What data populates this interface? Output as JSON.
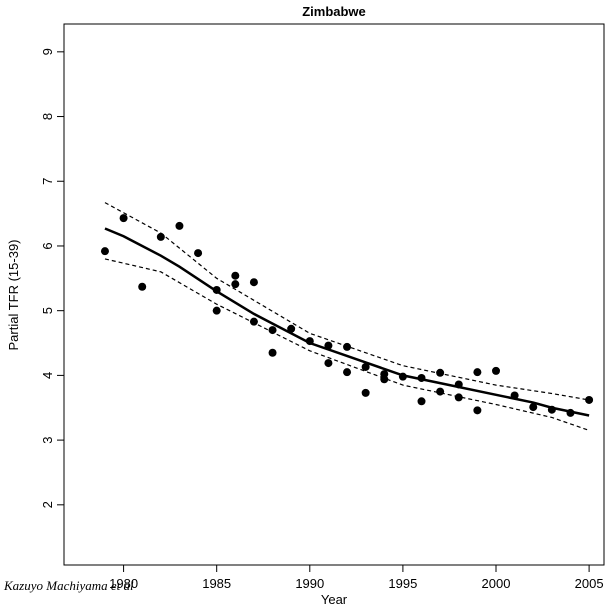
{
  "chart_data": {
    "type": "scatter",
    "title": "Zimbabwe",
    "x_label": "Year",
    "y_label": "Partial TFR (15-39)",
    "annotation": "Kazuyo Machiyama et al",
    "xlim": [
      1976.8,
      2005.8
    ],
    "ylim": [
      1.07,
      9.43
    ],
    "xticks": [
      1980,
      1985,
      1990,
      1995,
      2000,
      2005
    ],
    "yticks": [
      2,
      3,
      4,
      5,
      6,
      7,
      8,
      9
    ],
    "series": [
      {
        "name": "observed",
        "kind": "points",
        "color": "#000000",
        "x": [
          1979,
          1980,
          1981,
          1982,
          1983,
          1984,
          1985,
          1985,
          1986,
          1986,
          1987,
          1987,
          1988,
          1988,
          1989,
          1990,
          1991,
          1991,
          1992,
          1992,
          1993,
          1993,
          1994,
          1994,
          1995,
          1996,
          1996,
          1997,
          1997,
          1998,
          1998,
          1999,
          1999,
          2000,
          2001,
          2002,
          2003,
          2004,
          2005
        ],
        "values": [
          5.92,
          6.43,
          5.37,
          6.14,
          6.31,
          5.89,
          5.32,
          5.0,
          5.54,
          5.41,
          5.44,
          4.83,
          4.7,
          4.35,
          4.72,
          4.53,
          4.19,
          4.46,
          4.44,
          4.05,
          4.13,
          3.73,
          4.02,
          3.94,
          3.98,
          3.96,
          3.6,
          4.04,
          3.75,
          3.86,
          3.66,
          4.05,
          3.46,
          4.07,
          3.69,
          3.51,
          3.47,
          3.42,
          3.62
        ]
      },
      {
        "name": "fit",
        "kind": "line",
        "color": "#000000",
        "dashed": false,
        "x": [
          1979,
          1980,
          1982,
          1983,
          1985,
          1987,
          1988,
          1990,
          1992,
          1993,
          1995,
          1997,
          2000,
          2002,
          2003,
          2005
        ],
        "values": [
          6.27,
          6.15,
          5.85,
          5.68,
          5.3,
          4.95,
          4.8,
          4.5,
          4.3,
          4.2,
          4.0,
          3.88,
          3.7,
          3.58,
          3.5,
          3.38
        ]
      },
      {
        "name": "upper",
        "kind": "line",
        "color": "#000000",
        "dashed": true,
        "x": [
          1979,
          1982,
          1985,
          1990,
          1995,
          2000,
          2003,
          2005
        ],
        "values": [
          6.67,
          6.2,
          5.5,
          4.65,
          4.15,
          3.85,
          3.72,
          3.62
        ]
      },
      {
        "name": "lower",
        "kind": "line",
        "color": "#000000",
        "dashed": true,
        "x": [
          1979,
          1982,
          1985,
          1990,
          1995,
          2000,
          2003,
          2005
        ],
        "values": [
          5.8,
          5.6,
          5.1,
          4.38,
          3.85,
          3.55,
          3.35,
          3.15
        ]
      }
    ]
  }
}
